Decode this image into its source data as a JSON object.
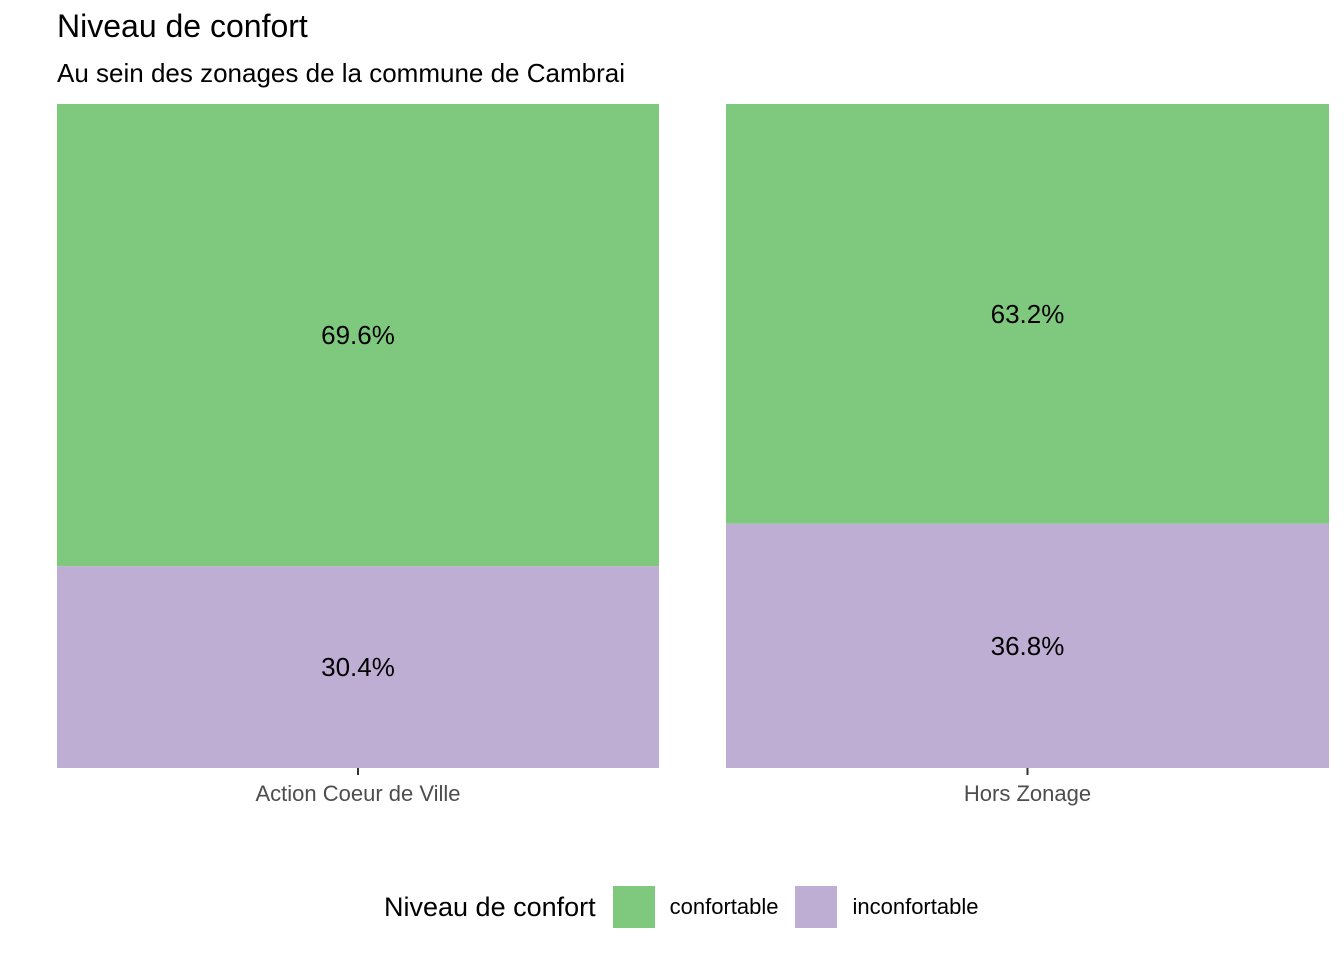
{
  "chart_data": {
    "type": "bar",
    "stacked": true,
    "normalized": true,
    "title": "Niveau de confort",
    "subtitle": "Au sein des zonages de la commune de Cambrai",
    "xlabel": "",
    "ylabel": "",
    "categories": [
      "Action Coeur de Ville",
      "Hors Zonage"
    ],
    "series": [
      {
        "name": "confortable",
        "values": [
          69.6,
          63.2
        ],
        "labels": [
          "69.6%",
          "63.2%"
        ],
        "color": "#7fc97f"
      },
      {
        "name": "inconfortable",
        "values": [
          30.4,
          36.8
        ],
        "labels": [
          "30.4%",
          "36.8%"
        ],
        "color": "#beaed4"
      }
    ],
    "ylim": [
      0,
      100
    ],
    "grid": false,
    "y_axis_shown": false,
    "legend": {
      "title": "Niveau de confort",
      "position": "bottom"
    }
  }
}
